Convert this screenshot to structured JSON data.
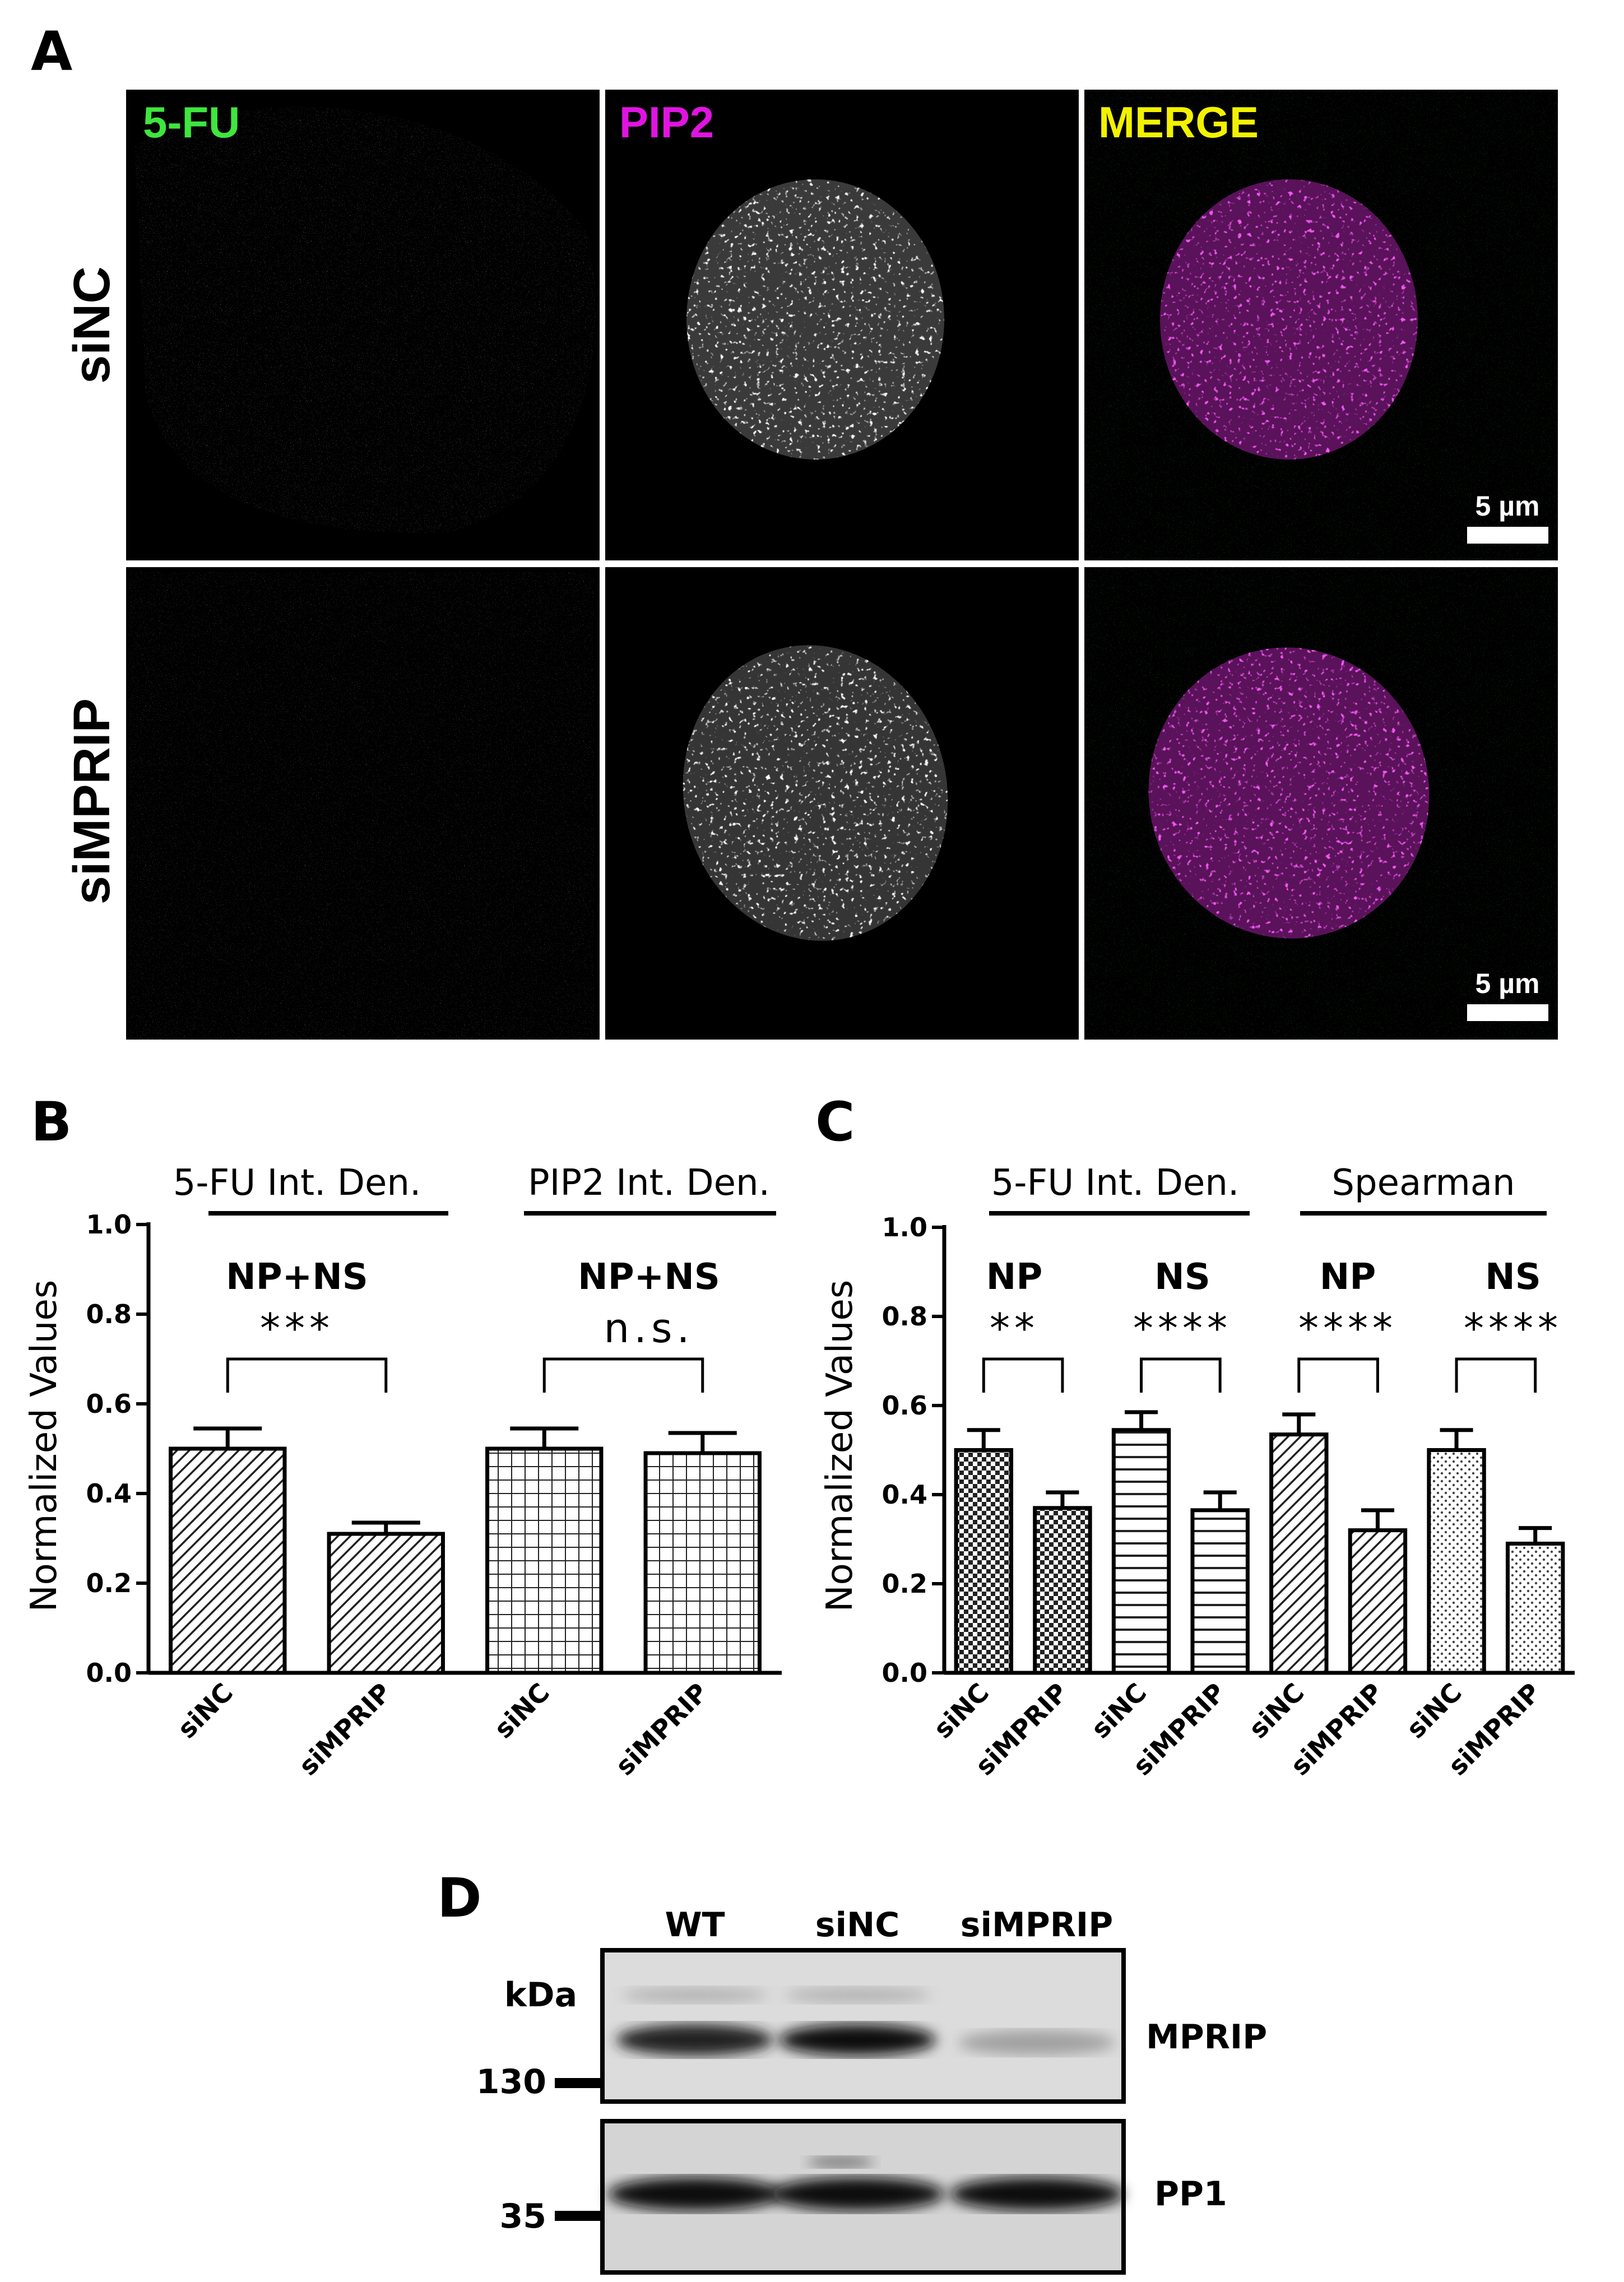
{
  "panels": {
    "A": "A",
    "B": "B",
    "C": "C",
    "D": "D"
  },
  "micro": {
    "channels": [
      "5-FU",
      "PIP2",
      "MERGE"
    ],
    "channel_colors": [
      "#3ee63e",
      "#e014e0",
      "#f2f200"
    ],
    "rows": [
      "siNC",
      "siMPRIP"
    ],
    "scalebar": "5 µm"
  },
  "chartB": {
    "ylabel": "Normalized Values",
    "groups": [
      "5-FU Int. Den.",
      "PIP2 Int. Den."
    ],
    "subgroups": [
      "NP+NS",
      "NP+NS"
    ],
    "significance": [
      "***",
      "n.s."
    ]
  },
  "chartC": {
    "ylabel": "Normalized Values",
    "groups": [
      "5-FU Int. Den.",
      "Spearman"
    ],
    "subgroups": [
      "NP",
      "NS",
      "NP",
      "NS"
    ],
    "significance": [
      "**",
      "****",
      "****",
      "****"
    ]
  },
  "chart_data": [
    {
      "type": "bar",
      "ylabel": "Normalized Values",
      "ylim": [
        0,
        1.0
      ],
      "yticks": [
        "0.0",
        "0.2",
        "0.4",
        "0.6",
        "0.8",
        "1.0"
      ],
      "categories": [
        "siNC",
        "siMPRIP",
        "siNC",
        "siMPRIP"
      ],
      "values": [
        0.5,
        0.31,
        0.5,
        0.49
      ],
      "errors": [
        0.045,
        0.025,
        0.045,
        0.045
      ],
      "patterns": [
        "diag",
        "diag",
        "grid",
        "grid"
      ]
    },
    {
      "type": "bar",
      "ylabel": "Normalized Values",
      "ylim": [
        0,
        1.0
      ],
      "yticks": [
        "0.0",
        "0.2",
        "0.4",
        "0.6",
        "0.8",
        "1.0"
      ],
      "categories": [
        "siNC",
        "siMPRIP",
        "siNC",
        "siMPRIP",
        "siNC",
        "siMPRIP",
        "siNC",
        "siMPRIP"
      ],
      "values": [
        0.5,
        0.37,
        0.545,
        0.365,
        0.535,
        0.32,
        0.5,
        0.29
      ],
      "errors": [
        0.045,
        0.035,
        0.04,
        0.04,
        0.045,
        0.045,
        0.045,
        0.035
      ],
      "patterns": [
        "check",
        "check",
        "hline",
        "hline",
        "diag",
        "diag",
        "dots",
        "dots"
      ]
    }
  ],
  "western": {
    "kda": "kDa",
    "lanes": [
      "WT",
      "siNC",
      "siMPRIP"
    ],
    "markers": [
      "130",
      "35"
    ],
    "bands": [
      "MPRIP",
      "PP1"
    ]
  }
}
